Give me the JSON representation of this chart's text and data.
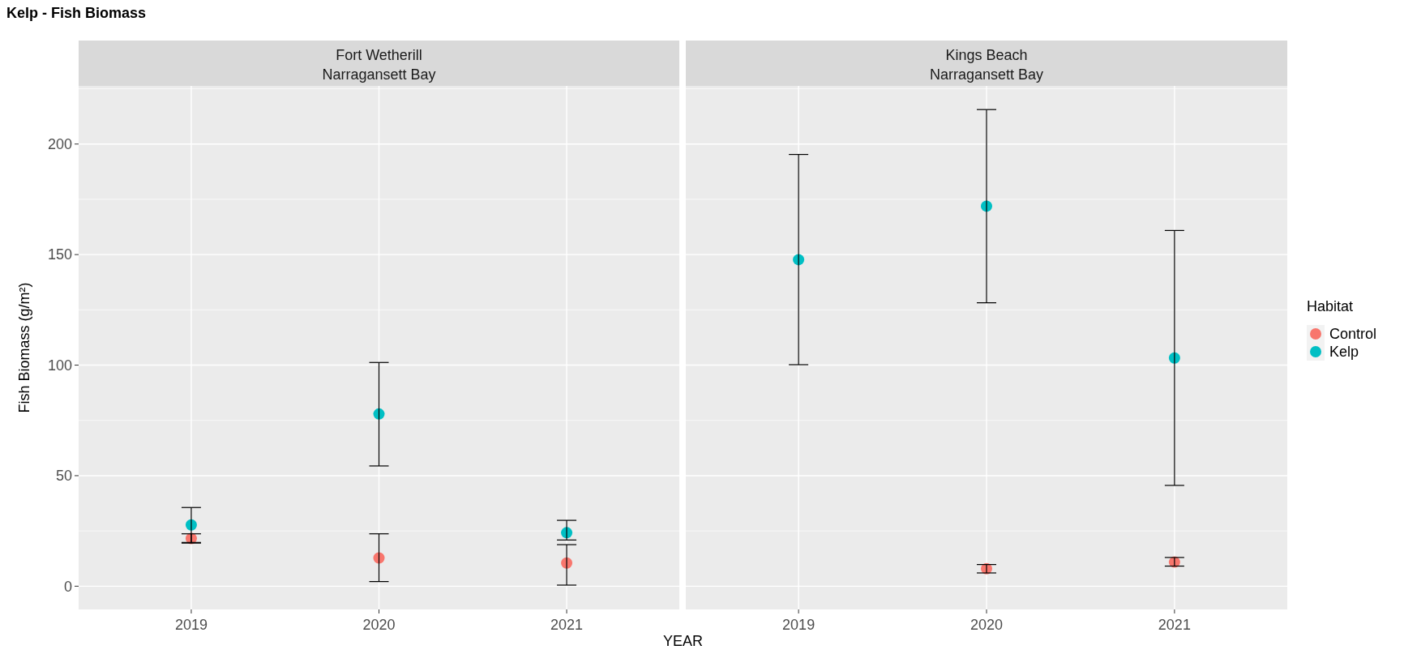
{
  "chart_data": [
    {
      "type": "scatter",
      "title": "Kelp - Fish Biomass",
      "subtitle": "Fort Wetherill\nNarragansett Bay",
      "xlabel": "YEAR",
      "ylabel": "Fish Biomass (g/m²)",
      "categories": [
        "2019",
        "2020",
        "2021"
      ],
      "ylim": [
        -10.5,
        226.3
      ],
      "yticks": [
        0,
        {
          "value": 25,
          "label": null
        },
        50,
        {
          "value": 75,
          "label": null
        },
        100,
        {
          "value": 125,
          "label": null
        },
        150,
        {
          "value": 175,
          "label": null
        },
        200,
        {
          "value": 225,
          "label": null
        }
      ],
      "grid": true,
      "marker": "circle",
      "legend": false,
      "series": [
        {
          "color": "#f8766d",
          "values": [
            21.6,
            12.8,
            10.5
          ],
          "errors": [
            [
              19.5,
              23.7
            ],
            [
              2.1,
              23.7
            ],
            [
              0.5,
              18.8
            ]
          ]
        },
        {
          "color": "#00bfc4",
          "values": [
            27.7,
            77.9,
            24.2
          ],
          "errors": [
            [
              19.8,
              35.6
            ],
            [
              54.4,
              101.2
            ],
            [
              20.9,
              29.8
            ]
          ]
        }
      ]
    },
    {
      "type": "scatter",
      "subtitle": "Kings Beach\nNarragansett Bay",
      "legend_title": "Habitat",
      "categories": [
        "2019",
        "2020",
        "2021"
      ],
      "ylim": [
        -10.5,
        226.3
      ],
      "yticks": [
        0,
        {
          "value": 25,
          "label": null
        },
        50,
        {
          "value": 75,
          "label": null
        },
        100,
        {
          "value": 125,
          "label": null
        },
        150,
        {
          "value": 175,
          "label": null
        },
        200,
        {
          "value": 225,
          "label": null
        }
      ],
      "tick_labels": "x",
      "grid": true,
      "marker": "circle",
      "legend": "right",
      "series": [
        {
          "name": "Control",
          "color": "#f8766d",
          "values": [
            null,
            7.9,
            10.9
          ],
          "errors": [
            null,
            [
              6.0,
              9.8
            ],
            [
              9.1,
              13.0
            ]
          ]
        },
        {
          "name": "Kelp",
          "color": "#00bfc4",
          "values": [
            147.7,
            171.9,
            103.2
          ],
          "errors": [
            [
              100.2,
              195.3
            ],
            [
              128.2,
              215.6
            ],
            [
              45.6,
              160.9
            ]
          ]
        }
      ]
    }
  ]
}
